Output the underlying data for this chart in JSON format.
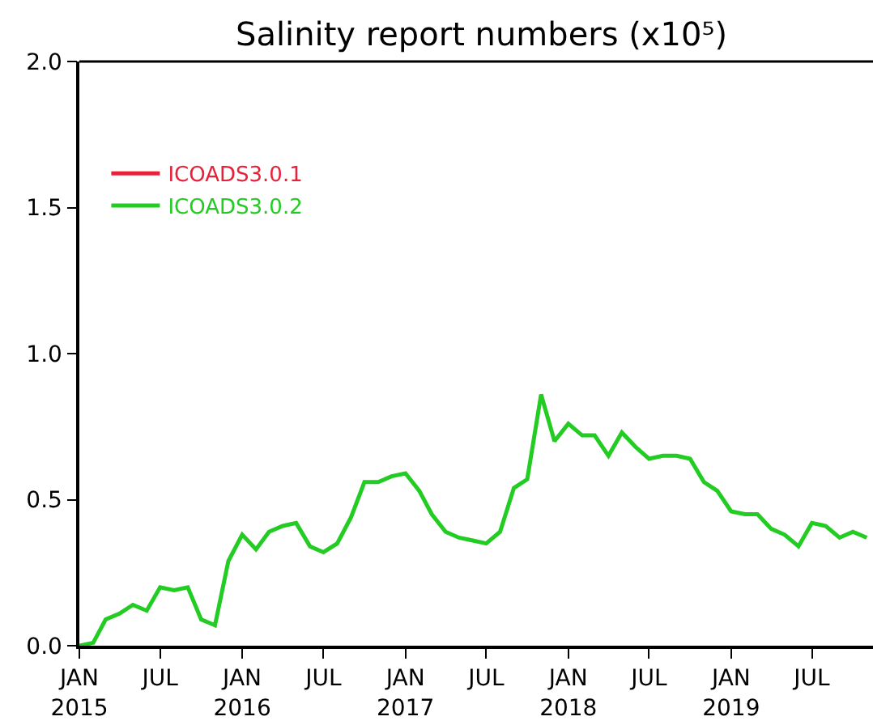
{
  "chart_data": {
    "type": "line",
    "title": "Salinity report numbers (x10⁵)",
    "x": [
      "2015-01",
      "2015-02",
      "2015-03",
      "2015-04",
      "2015-05",
      "2015-06",
      "2015-07",
      "2015-08",
      "2015-09",
      "2015-10",
      "2015-11",
      "2015-12",
      "2016-01",
      "2016-02",
      "2016-03",
      "2016-04",
      "2016-05",
      "2016-06",
      "2016-07",
      "2016-08",
      "2016-09",
      "2016-10",
      "2016-11",
      "2016-12",
      "2017-01",
      "2017-02",
      "2017-03",
      "2017-04",
      "2017-05",
      "2017-06",
      "2017-07",
      "2017-08",
      "2017-09",
      "2017-10",
      "2017-11",
      "2017-12",
      "2018-01",
      "2018-02",
      "2018-03",
      "2018-04",
      "2018-05",
      "2018-06",
      "2018-07",
      "2018-08",
      "2018-09",
      "2018-10",
      "2018-11",
      "2018-12",
      "2019-01",
      "2019-02",
      "2019-03",
      "2019-04",
      "2019-05",
      "2019-06",
      "2019-07",
      "2019-08",
      "2019-09",
      "2019-10",
      "2019-11"
    ],
    "series": [
      {
        "name": "ICOADS3.0.1",
        "color": "#e8213a",
        "values": [
          null,
          null,
          null,
          null,
          null,
          null,
          null,
          null,
          null,
          null,
          null,
          null,
          null,
          null,
          null,
          null,
          null,
          null,
          null,
          null,
          null,
          null,
          null,
          null,
          null,
          null,
          null,
          null,
          null,
          null,
          null,
          null,
          null,
          null,
          null,
          null,
          null,
          null,
          null,
          null,
          null,
          null,
          null,
          null,
          null,
          null,
          null,
          null,
          null,
          null,
          null,
          null,
          null,
          null,
          null,
          null,
          null,
          null,
          null
        ]
      },
      {
        "name": "ICOADS3.0.2",
        "color": "#22cc22",
        "values": [
          0.0,
          0.01,
          0.09,
          0.11,
          0.14,
          0.12,
          0.2,
          0.19,
          0.2,
          0.09,
          0.07,
          0.29,
          0.38,
          0.33,
          0.39,
          0.41,
          0.42,
          0.34,
          0.32,
          0.35,
          0.44,
          0.56,
          0.56,
          0.58,
          0.59,
          0.53,
          0.45,
          0.39,
          0.37,
          0.36,
          0.35,
          0.39,
          0.54,
          0.57,
          0.86,
          0.7,
          0.76,
          0.72,
          0.72,
          0.65,
          0.73,
          0.68,
          0.64,
          0.65,
          0.65,
          0.64,
          0.56,
          0.53,
          0.46,
          0.45,
          0.45,
          0.4,
          0.38,
          0.34,
          0.42,
          0.41,
          0.37,
          0.39,
          0.37
        ]
      }
    ],
    "xlim": [
      "2015-01-01",
      "2019-11-15"
    ],
    "xticks": [
      {
        "value": "2015-01",
        "label": "JAN\n2015"
      },
      {
        "value": "2015-07",
        "label": "JUL"
      },
      {
        "value": "2016-01",
        "label": "JAN\n2016"
      },
      {
        "value": "2016-07",
        "label": "JUL"
      },
      {
        "value": "2017-01",
        "label": "JAN\n2017"
      },
      {
        "value": "2017-07",
        "label": "JUL"
      },
      {
        "value": "2018-01",
        "label": "JAN\n2018"
      },
      {
        "value": "2018-07",
        "label": "JUL"
      },
      {
        "value": "2019-01",
        "label": "JAN\n2019"
      },
      {
        "value": "2019-07",
        "label": "JUL"
      }
    ],
    "ylim": [
      0,
      2.0
    ],
    "yticks": [
      {
        "value": 0,
        "label": "0.0"
      },
      {
        "value": 0.5,
        "label": "0.5"
      },
      {
        "value": 1.0,
        "label": "1.0"
      },
      {
        "value": 1.5,
        "label": "1.5"
      },
      {
        "value": 2.0,
        "label": "2.0"
      }
    ],
    "grid": false,
    "legend": "top left",
    "marker": "none",
    "line_style": "solid"
  }
}
